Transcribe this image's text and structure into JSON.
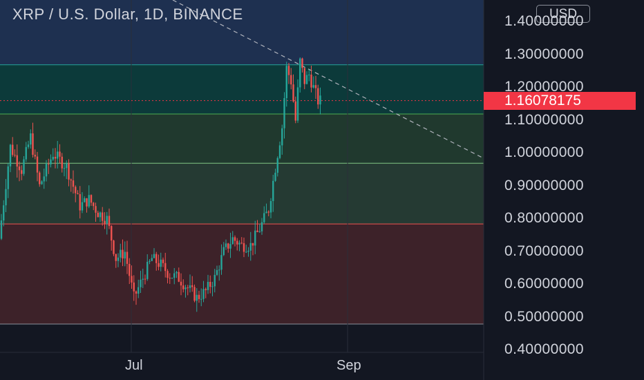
{
  "chart_data": {
    "type": "candlestick",
    "title": "XRP / U.S. Dollar, 1D, BINANCE",
    "currency": "USD",
    "last_price": "1.16078175",
    "ylim": [
      0.4,
      1.4
    ],
    "y_ticks": [
      "1.40000000",
      "1.30000000",
      "1.20000000",
      "1.10000000",
      "1.00000000",
      "0.90000000",
      "0.80000000",
      "0.70000000",
      "0.60000000",
      "0.50000000",
      "0.40000000"
    ],
    "x_ticks": [
      "Jul",
      "Sep"
    ],
    "zones": [
      {
        "from": 1.12,
        "to": 1.27,
        "color": "#0c3a3a",
        "edge": "#26a69a"
      },
      {
        "from": 0.97,
        "to": 1.12,
        "color": "#20392e",
        "edge": "#4caf50"
      },
      {
        "from": 0.785,
        "to": 0.97,
        "color": "#253a33",
        "edge": "#81c784"
      },
      {
        "from": 0.48,
        "to": 0.785,
        "color": "#3d2229",
        "edge": "#ef5350"
      }
    ],
    "trendline": {
      "from": [
        0,
        1.42
      ],
      "to": 142,
      "to_value": 0.985
    },
    "colors": {
      "up": "#26a69a",
      "down": "#ef5350",
      "grid": "#2a2e39",
      "text": "#d1d4dc",
      "background": "#131722",
      "upper_band": "#1e3050"
    }
  }
}
